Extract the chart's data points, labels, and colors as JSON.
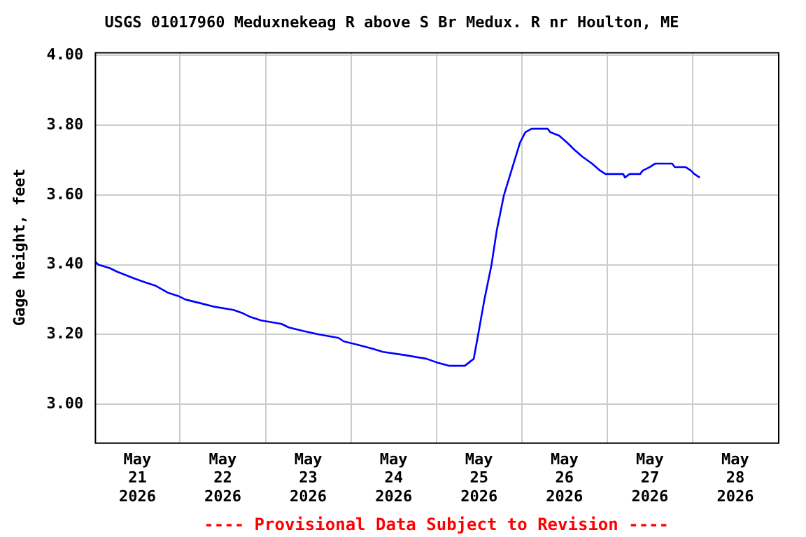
{
  "chart_data": {
    "type": "line",
    "title": "USGS 01017960 Meduxnekeag R above S Br Medux. R nr Houlton, ME",
    "ylabel": "Gage height, feet",
    "annotations": [
      "---- Provisional Data Subject to Revision ----"
    ],
    "x": [
      "2026-05-21T00:00",
      "2026-05-21T01:00",
      "2026-05-21T04:15",
      "2026-05-21T06:15",
      "2026-05-21T11:15",
      "2026-05-21T14:00",
      "2026-05-21T17:00",
      "2026-05-21T20:30",
      "2026-05-21T23:30",
      "2026-05-22T01:30",
      "2026-05-22T05:30",
      "2026-05-22T09:15",
      "2026-05-22T15:00",
      "2026-05-22T17:45",
      "2026-05-22T19:45",
      "2026-05-22T22:45",
      "2026-05-23T04:30",
      "2026-05-23T06:30",
      "2026-05-23T10:30",
      "2026-05-23T15:00",
      "2026-05-23T20:30",
      "2026-05-23T22:00",
      "2026-05-24T02:00",
      "2026-05-24T05:45",
      "2026-05-24T09:00",
      "2026-05-24T15:30",
      "2026-05-24T21:15",
      "2026-05-25T00:00",
      "2026-05-25T03:30",
      "2026-05-25T08:00",
      "2026-05-25T09:15",
      "2026-05-25T10:30",
      "2026-05-25T11:45",
      "2026-05-25T13:30",
      "2026-05-25T15:30",
      "2026-05-25T17:00",
      "2026-05-25T19:00",
      "2026-05-25T22:00",
      "2026-05-25T23:30",
      "2026-05-26T01:00",
      "2026-05-26T02:45",
      "2026-05-26T07:15",
      "2026-05-26T08:00",
      "2026-05-26T10:30",
      "2026-05-26T12:45",
      "2026-05-26T14:45",
      "2026-05-26T17:00",
      "2026-05-26T19:45",
      "2026-05-26T22:00",
      "2026-05-26T23:30",
      "2026-05-27T04:30",
      "2026-05-27T05:00",
      "2026-05-27T06:15",
      "2026-05-27T09:15",
      "2026-05-27T10:00",
      "2026-05-27T12:00",
      "2026-05-27T13:30",
      "2026-05-27T18:15",
      "2026-05-27T19:00",
      "2026-05-27T22:00",
      "2026-05-27T23:30",
      "2026-05-28T00:30",
      "2026-05-28T02:00"
    ],
    "series": [
      {
        "color": "#0000ff",
        "values": [
          3.41,
          3.4,
          3.39,
          3.38,
          3.36,
          3.35,
          3.34,
          3.32,
          3.31,
          3.3,
          3.29,
          3.28,
          3.27,
          3.26,
          3.25,
          3.24,
          3.23,
          3.22,
          3.21,
          3.2,
          3.19,
          3.18,
          3.17,
          3.16,
          3.15,
          3.14,
          3.13,
          3.12,
          3.11,
          3.11,
          3.12,
          3.13,
          3.2,
          3.3,
          3.4,
          3.5,
          3.6,
          3.7,
          3.75,
          3.78,
          3.79,
          3.79,
          3.78,
          3.77,
          3.75,
          3.73,
          3.71,
          3.69,
          3.67,
          3.66,
          3.66,
          3.65,
          3.66,
          3.66,
          3.67,
          3.68,
          3.69,
          3.69,
          3.68,
          3.68,
          3.67,
          3.66,
          3.65
        ]
      }
    ],
    "xlim": [
      "2026-05-21T00:00",
      "2026-05-29T00:00"
    ],
    "xticks": [
      {
        "value": "2026-05-21T12:00",
        "label": "May 21 2026"
      },
      {
        "value": "2026-05-22T00:00",
        "label": null
      },
      {
        "value": "2026-05-22T12:00",
        "label": "May 22 2026"
      },
      {
        "value": "2026-05-23T00:00",
        "label": null
      },
      {
        "value": "2026-05-23T12:00",
        "label": "May 23 2026"
      },
      {
        "value": "2026-05-24T00:00",
        "label": null
      },
      {
        "value": "2026-05-24T12:00",
        "label": "May 24 2026"
      },
      {
        "value": "2026-05-25T00:00",
        "label": null
      },
      {
        "value": "2026-05-25T12:00",
        "label": "May 25 2026"
      },
      {
        "value": "2026-05-26T00:00",
        "label": null
      },
      {
        "value": "2026-05-26T12:00",
        "label": "May 26 2026"
      },
      {
        "value": "2026-05-27T00:00",
        "label": null
      },
      {
        "value": "2026-05-27T12:00",
        "label": "May 27 2026"
      },
      {
        "value": "2026-05-28T00:00",
        "label": null
      },
      {
        "value": "2026-05-28T12:00",
        "label": "May 28 2026"
      }
    ],
    "ylim": [
      2.89,
      4.01
    ],
    "yticks": [
      {
        "value": 3,
        "label": "3.00"
      },
      {
        "value": 3.2,
        "label": "3.20"
      },
      {
        "value": 3.4,
        "label": "3.40"
      },
      {
        "value": 3.6,
        "label": "3.60"
      },
      {
        "value": 3.8,
        "label": "3.80"
      },
      {
        "value": 4,
        "label": "4.00"
      }
    ],
    "grid": true,
    "legend": false,
    "marker": "none",
    "line_style": "solid"
  }
}
